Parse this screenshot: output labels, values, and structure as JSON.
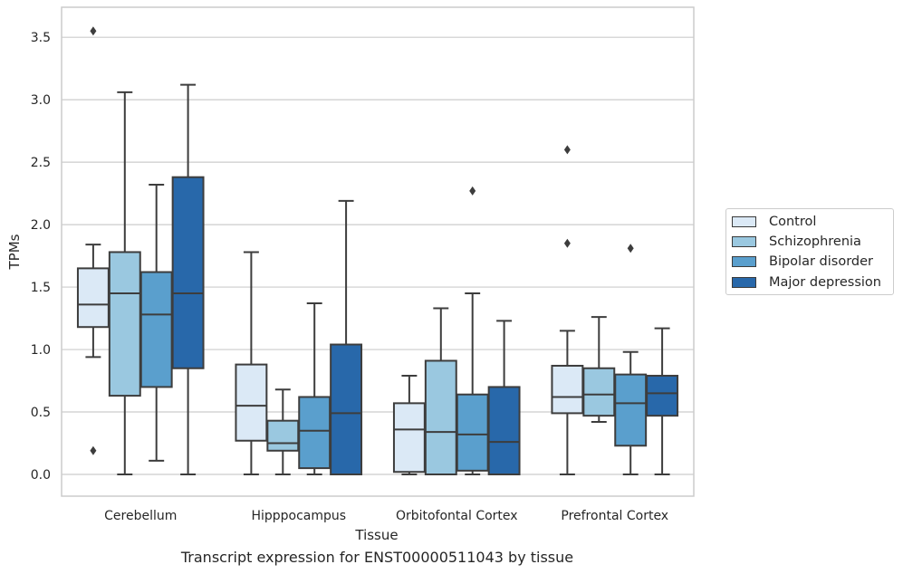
{
  "chart_data": {
    "type": "box",
    "title": "Transcript expression for ENST00000511043 by tissue",
    "xlabel": "Tissue",
    "ylabel": "TPMs",
    "ylim": [
      -0.17,
      3.7
    ],
    "yticks": [
      "0.0",
      "0.5",
      "1.0",
      "1.5",
      "2.0",
      "2.5",
      "3.0",
      "3.5"
    ],
    "grid": "horizontal",
    "legend_position": "right",
    "categories": [
      "Cerebellum",
      "Hipppocampus",
      "Orbitofontal Cortex",
      "Prefrontal Cortex"
    ],
    "series": [
      {
        "name": "Control",
        "color": "#dbe9f6",
        "boxes": [
          {
            "whisker_low": 0.94,
            "q1": 1.18,
            "median": 1.36,
            "q3": 1.65,
            "whisker_high": 1.84,
            "outliers": [
              3.55,
              0.19
            ]
          },
          {
            "whisker_low": 0.0,
            "q1": 0.27,
            "median": 0.55,
            "q3": 0.88,
            "whisker_high": 1.78,
            "outliers": []
          },
          {
            "whisker_low": 0.0,
            "q1": 0.02,
            "median": 0.36,
            "q3": 0.57,
            "whisker_high": 0.79,
            "outliers": []
          },
          {
            "whisker_low": 0.0,
            "q1": 0.49,
            "median": 0.62,
            "q3": 0.87,
            "whisker_high": 1.15,
            "outliers": [
              2.6,
              1.85
            ]
          }
        ]
      },
      {
        "name": "Schizophrenia",
        "color": "#9ac8e0",
        "boxes": [
          {
            "whisker_low": 0.0,
            "q1": 0.63,
            "median": 1.45,
            "q3": 1.78,
            "whisker_high": 3.06,
            "outliers": []
          },
          {
            "whisker_low": 0.0,
            "q1": 0.19,
            "median": 0.25,
            "q3": 0.43,
            "whisker_high": 0.68,
            "outliers": []
          },
          {
            "whisker_low": 0.0,
            "q1": 0.0,
            "median": 0.34,
            "q3": 0.91,
            "whisker_high": 1.33,
            "outliers": []
          },
          {
            "whisker_low": 0.42,
            "q1": 0.47,
            "median": 0.64,
            "q3": 0.85,
            "whisker_high": 1.26,
            "outliers": []
          }
        ]
      },
      {
        "name": "Bipolar disorder",
        "color": "#5a9fcd",
        "boxes": [
          {
            "whisker_low": 0.11,
            "q1": 0.7,
            "median": 1.28,
            "q3": 1.62,
            "whisker_high": 2.32,
            "outliers": []
          },
          {
            "whisker_low": 0.0,
            "q1": 0.05,
            "median": 0.35,
            "q3": 0.62,
            "whisker_high": 1.37,
            "outliers": []
          },
          {
            "whisker_low": 0.0,
            "q1": 0.03,
            "median": 0.32,
            "q3": 0.64,
            "whisker_high": 1.45,
            "outliers": [
              2.27
            ]
          },
          {
            "whisker_low": 0.0,
            "q1": 0.23,
            "median": 0.57,
            "q3": 0.8,
            "whisker_high": 0.98,
            "outliers": [
              1.81
            ]
          }
        ]
      },
      {
        "name": "Major depression",
        "color": "#2868aa",
        "boxes": [
          {
            "whisker_low": 0.0,
            "q1": 0.85,
            "median": 1.45,
            "q3": 2.38,
            "whisker_high": 3.12,
            "outliers": []
          },
          {
            "whisker_low": 0.0,
            "q1": 0.0,
            "median": 0.49,
            "q3": 1.04,
            "whisker_high": 2.19,
            "outliers": []
          },
          {
            "whisker_low": 0.0,
            "q1": 0.0,
            "median": 0.26,
            "q3": 0.7,
            "whisker_high": 1.23,
            "outliers": []
          },
          {
            "whisker_low": 0.0,
            "q1": 0.47,
            "median": 0.65,
            "q3": 0.79,
            "whisker_high": 1.17,
            "outliers": []
          }
        ]
      }
    ]
  }
}
